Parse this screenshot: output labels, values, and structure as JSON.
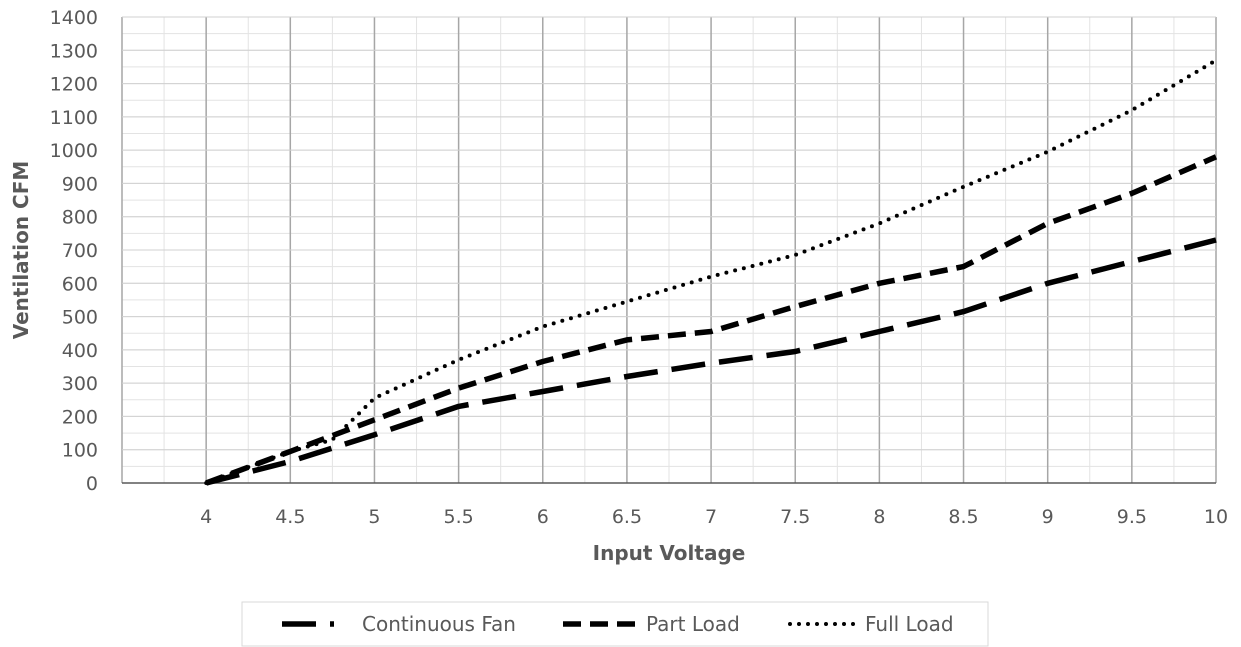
{
  "chart_data": {
    "type": "line",
    "xlabel": "Input Voltage",
    "ylabel": "Ventilation CFM",
    "xlim": [
      3.5,
      10
    ],
    "ylim": [
      0,
      1400
    ],
    "x_ticks": [
      4,
      4.5,
      5,
      5.5,
      6,
      6.5,
      7,
      7.5,
      8,
      8.5,
      9,
      9.5,
      10
    ],
    "x_tick_labels": [
      "4",
      "4.5",
      "5",
      "5.5",
      "6",
      "6.5",
      "7",
      "7.5",
      "8",
      "8.5",
      "9",
      "9.5",
      "10"
    ],
    "y_ticks": [
      0,
      100,
      200,
      300,
      400,
      500,
      600,
      700,
      800,
      900,
      1000,
      1100,
      1200,
      1300,
      1400
    ],
    "y_tick_labels": [
      "0",
      "100",
      "200",
      "300",
      "400",
      "500",
      "600",
      "700",
      "800",
      "900",
      "1000",
      "1100",
      "1200",
      "1300",
      "1400"
    ],
    "grid": true,
    "legend_position": "bottom",
    "series": [
      {
        "name": "Continuous Fan",
        "dash": "long-dash",
        "color": "#000000",
        "x": [
          4,
          4.5,
          5,
          5.5,
          6,
          6.5,
          7,
          7.5,
          8,
          8.5,
          9,
          9.5,
          10
        ],
        "values": [
          0,
          65,
          145,
          230,
          275,
          320,
          360,
          395,
          455,
          515,
          600,
          665,
          730
        ]
      },
      {
        "name": "Part Load",
        "dash": "dash",
        "color": "#000000",
        "x": [
          4,
          4.5,
          5,
          5.5,
          6,
          6.5,
          7,
          7.5,
          8,
          8.5,
          9,
          9.5,
          10
        ],
        "values": [
          0,
          95,
          190,
          285,
          365,
          430,
          455,
          530,
          600,
          650,
          780,
          870,
          980
        ]
      },
      {
        "name": "Full Load",
        "dash": "dot",
        "color": "#000000",
        "x": [
          4,
          4.5,
          4.75,
          5,
          5.5,
          6,
          6.5,
          7,
          7.5,
          8,
          8.5,
          9,
          9.5,
          10
        ],
        "values": [
          0,
          95,
          130,
          255,
          370,
          470,
          545,
          620,
          685,
          780,
          890,
          995,
          1120,
          1270
        ]
      }
    ]
  }
}
